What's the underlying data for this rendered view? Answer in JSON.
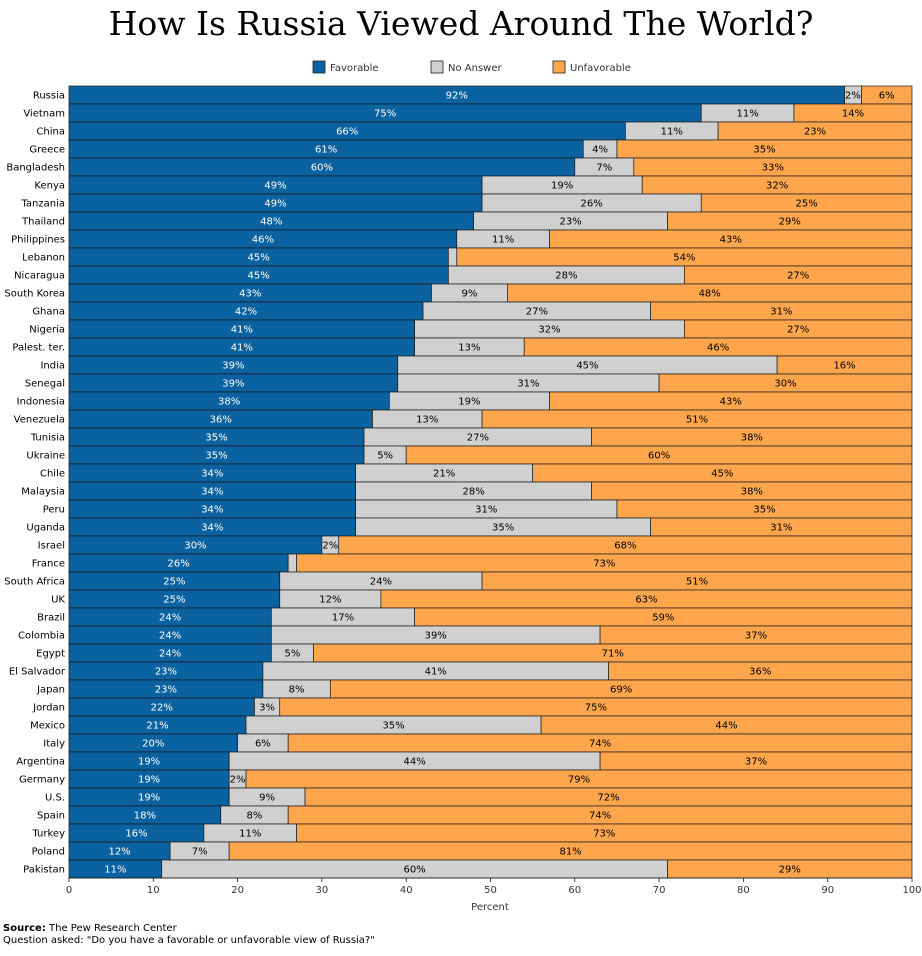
{
  "chart_data": {
    "type": "bar",
    "orientation": "horizontal",
    "stacked": true,
    "title": "How Is Russia Viewed Around The World?",
    "xlabel": "Percent",
    "ylabel": "",
    "xlim": [
      0,
      100
    ],
    "xticks": [
      0,
      10,
      20,
      30,
      40,
      50,
      60,
      70,
      80,
      90,
      100
    ],
    "legend_position": "top",
    "categories": [
      "Russia",
      "Vietnam",
      "China",
      "Greece",
      "Bangladesh",
      "Kenya",
      "Tanzania",
      "Thailand",
      "Philippines",
      "Lebanon",
      "Nicaragua",
      "South Korea",
      "Ghana",
      "Nigeria",
      "Palest. ter.",
      "India",
      "Senegal",
      "Indonesia",
      "Venezuela",
      "Tunisia",
      "Ukraine",
      "Chile",
      "Malaysia",
      "Peru",
      "Uganda",
      "Israel",
      "France",
      "South Africa",
      "UK",
      "Brazil",
      "Colombia",
      "Egypt",
      "El Salvador",
      "Japan",
      "Jordan",
      "Mexico",
      "Italy",
      "Argentina",
      "Germany",
      "U.S.",
      "Spain",
      "Turkey",
      "Poland",
      "Pakistan"
    ],
    "series": [
      {
        "name": "Favorable",
        "color": "#0a62a0",
        "values": [
          92,
          75,
          66,
          61,
          60,
          49,
          49,
          48,
          46,
          45,
          45,
          43,
          42,
          41,
          41,
          39,
          39,
          38,
          36,
          35,
          35,
          34,
          34,
          34,
          34,
          30,
          26,
          25,
          25,
          24,
          24,
          24,
          23,
          23,
          22,
          21,
          20,
          19,
          19,
          19,
          18,
          16,
          12,
          11
        ]
      },
      {
        "name": "No Answer",
        "color": "#d0d0d0",
        "values": [
          2,
          11,
          11,
          4,
          7,
          19,
          26,
          23,
          11,
          1,
          28,
          9,
          27,
          32,
          13,
          45,
          31,
          19,
          13,
          27,
          5,
          21,
          28,
          31,
          35,
          2,
          1,
          24,
          12,
          17,
          39,
          5,
          41,
          8,
          3,
          35,
          6,
          44,
          2,
          9,
          8,
          11,
          7,
          60
        ]
      },
      {
        "name": "Unfavorable",
        "color": "#ffa64d",
        "values": [
          6,
          14,
          23,
          35,
          33,
          32,
          25,
          29,
          43,
          54,
          27,
          48,
          31,
          27,
          46,
          16,
          30,
          43,
          51,
          38,
          60,
          45,
          38,
          35,
          31,
          68,
          73,
          51,
          63,
          59,
          37,
          71,
          36,
          69,
          75,
          44,
          74,
          37,
          79,
          72,
          74,
          73,
          81,
          29
        ]
      }
    ],
    "value_labels": [
      [
        "92%",
        "2%",
        "6%"
      ],
      [
        "75%",
        "11%",
        "14%"
      ],
      [
        "66%",
        "11%",
        "23%"
      ],
      [
        "61%",
        "4%",
        "35%"
      ],
      [
        "60%",
        "7%",
        "33%"
      ],
      [
        "49%",
        "19%",
        "32%"
      ],
      [
        "49%",
        "26%",
        "25%"
      ],
      [
        "48%",
        "23%",
        "29%"
      ],
      [
        "46%",
        "11%",
        "43%"
      ],
      [
        "45%",
        "",
        "54%"
      ],
      [
        "45%",
        "28%",
        "27%"
      ],
      [
        "43%",
        "9%",
        "48%"
      ],
      [
        "42%",
        "27%",
        "31%"
      ],
      [
        "41%",
        "32%",
        "27%"
      ],
      [
        "41%",
        "13%",
        "46%"
      ],
      [
        "39%",
        "45%",
        "16%"
      ],
      [
        "39%",
        "31%",
        "30%"
      ],
      [
        "38%",
        "19%",
        "43%"
      ],
      [
        "36%",
        "13%",
        "51%"
      ],
      [
        "35%",
        "27%",
        "38%"
      ],
      [
        "35%",
        "5%",
        "60%"
      ],
      [
        "34%",
        "21%",
        "45%"
      ],
      [
        "34%",
        "28%",
        "38%"
      ],
      [
        "34%",
        "31%",
        "35%"
      ],
      [
        "34%",
        "35%",
        "31%"
      ],
      [
        "30%",
        "2%",
        "68%"
      ],
      [
        "26%",
        "",
        "73%"
      ],
      [
        "25%",
        "24%",
        "51%"
      ],
      [
        "25%",
        "12%",
        "63%"
      ],
      [
        "24%",
        "17%",
        "59%"
      ],
      [
        "24%",
        "39%",
        "37%"
      ],
      [
        "24%",
        "5%",
        "71%"
      ],
      [
        "23%",
        "41%",
        "36%"
      ],
      [
        "23%",
        "8%",
        "69%"
      ],
      [
        "22%",
        "3%",
        "75%"
      ],
      [
        "21%",
        "35%",
        "44%"
      ],
      [
        "20%",
        "6%",
        "74%"
      ],
      [
        "19%",
        "44%",
        "37%"
      ],
      [
        "19%",
        "2%",
        "79%"
      ],
      [
        "19%",
        "9%",
        "72%"
      ],
      [
        "18%",
        "8%",
        "74%"
      ],
      [
        "16%",
        "11%",
        "73%"
      ],
      [
        "12%",
        "7%",
        "81%"
      ],
      [
        "11%",
        "60%",
        "29%"
      ]
    ]
  },
  "footer": {
    "source_label": "Source:",
    "source_text": "The Pew Research Center",
    "question_text": "Question asked: \"Do you have a favorable or unfavorable view of Russia?\""
  }
}
